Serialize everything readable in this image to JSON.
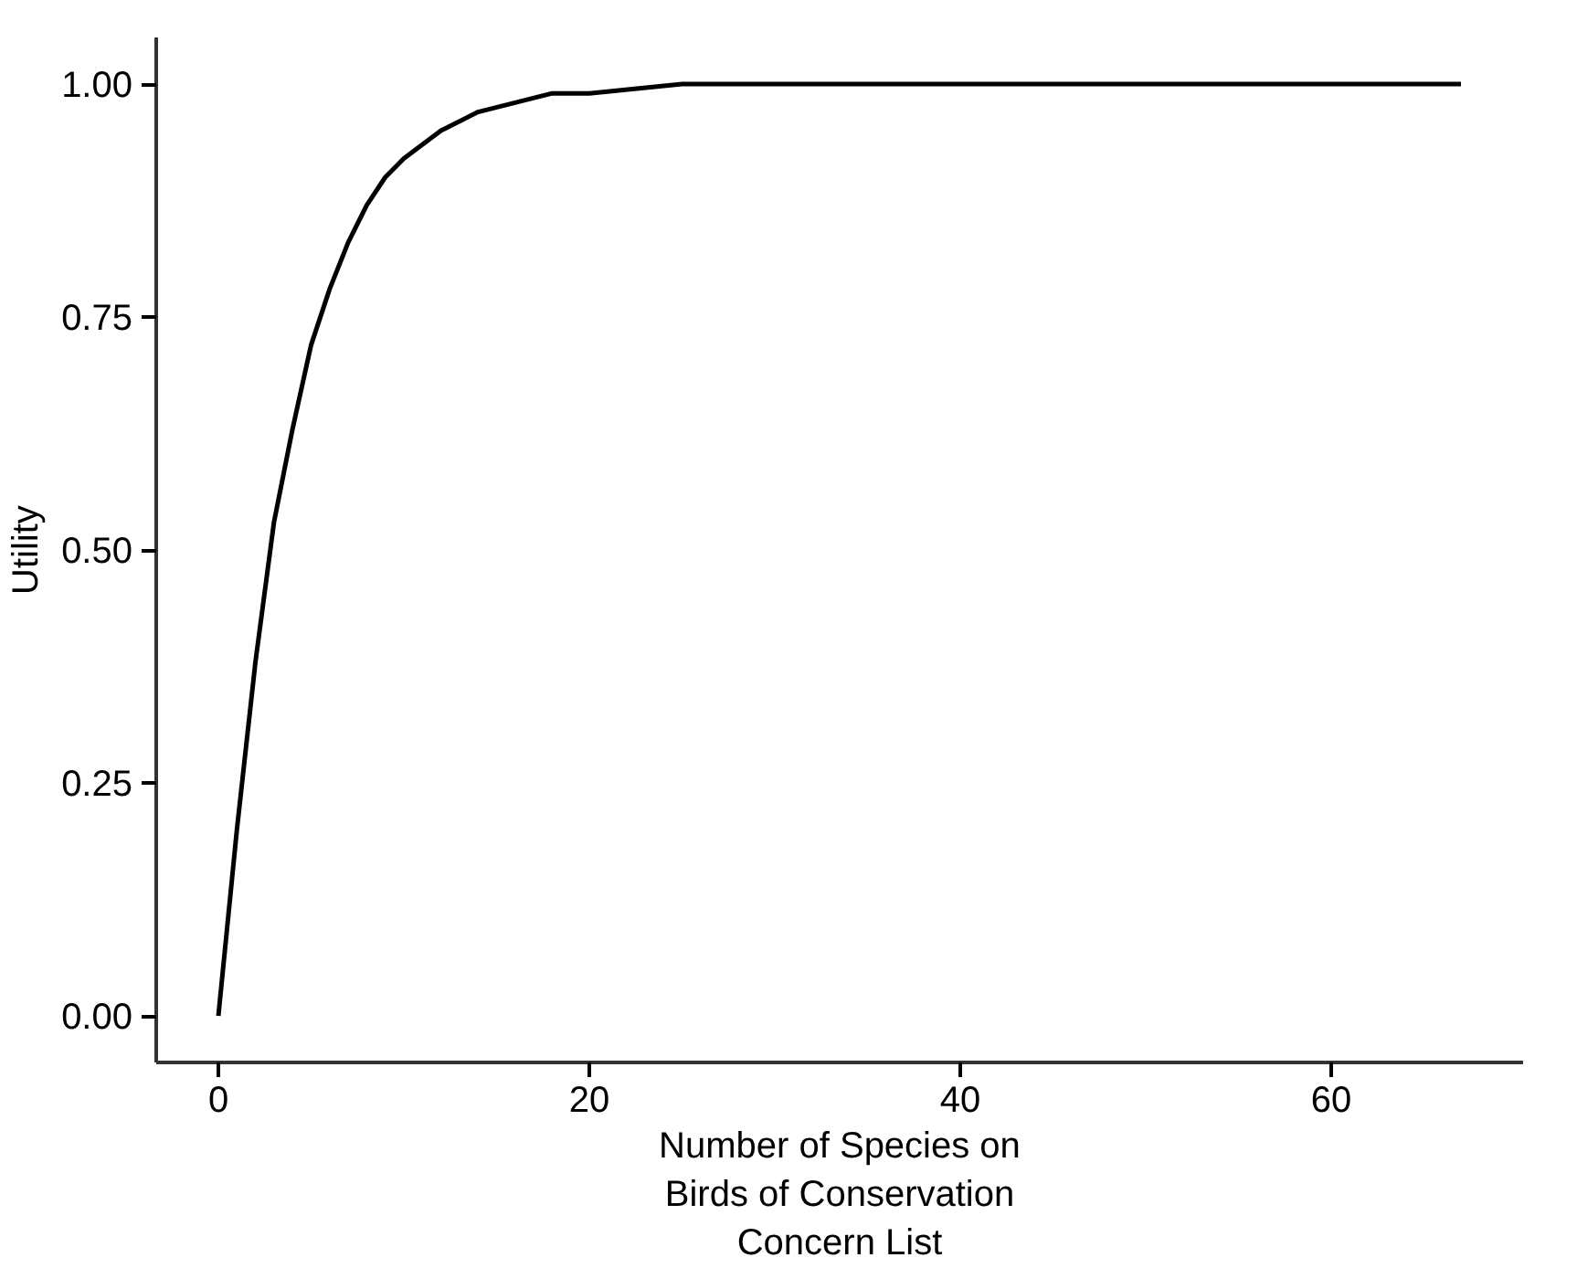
{
  "chart_data": {
    "type": "line",
    "xlabel": "Number of Species on\nBirds of Conservation\nConcern List",
    "ylabel": "Utility",
    "x": [
      0,
      1,
      2,
      3,
      4,
      5,
      6,
      7,
      8,
      9,
      10,
      12,
      14,
      16,
      18,
      20,
      25,
      30,
      40,
      50,
      60,
      67
    ],
    "series": [
      {
        "color": "#000000",
        "values": [
          0,
          0.2,
          0.38,
          0.53,
          0.63,
          0.72,
          0.78,
          0.83,
          0.87,
          0.9,
          0.92,
          0.95,
          0.97,
          0.98,
          0.99,
          0.99,
          1.0,
          1.0,
          1.0,
          1.0,
          1.0,
          1.0
        ]
      }
    ],
    "xlim": [
      -3.35,
      70.35
    ],
    "ylim": [
      -0.05,
      1.05
    ],
    "xticks": [
      0,
      20,
      40,
      60
    ],
    "yticks": [
      {
        "value": 0,
        "label": "0.00"
      },
      {
        "value": 0.25,
        "label": "0.25"
      },
      {
        "value": 0.5,
        "label": "0.50"
      },
      {
        "value": 0.75,
        "label": "0.75"
      },
      {
        "value": 1,
        "label": "1.00"
      }
    ],
    "grid": false,
    "line_style": "solid"
  }
}
